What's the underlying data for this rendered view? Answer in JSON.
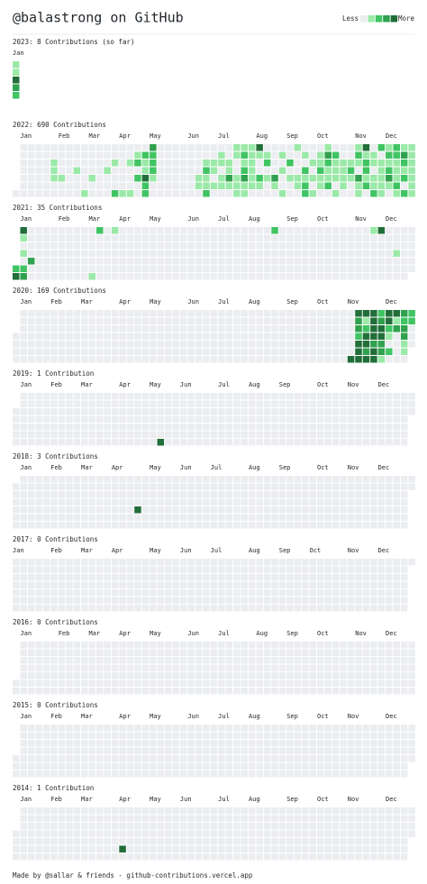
{
  "header": {
    "title": "@balastrong on GitHub",
    "legend_less": "Less",
    "legend_more": "More",
    "legend_levels": [
      0,
      1,
      2,
      3,
      4
    ],
    "colors": [
      "#ebedf0",
      "#9be9a8",
      "#40c463",
      "#30a14e",
      "#216e39"
    ]
  },
  "years": [
    {
      "title": "2023: 8 Contributions (so far)",
      "partial": true,
      "months": [
        "Jan"
      ],
      "active": [
        [
          0,
          0,
          1
        ],
        [
          0,
          1,
          1
        ],
        [
          0,
          2,
          4
        ],
        [
          0,
          3,
          3
        ],
        [
          0,
          4,
          2
        ]
      ]
    },
    {
      "title": "2022: 690 Contributions",
      "months": [
        "Jan",
        "Feb",
        "Mar",
        "Apr",
        "May",
        "Jun",
        "Jul",
        "Aug",
        "Sep",
        "Oct",
        "Nov",
        "Dec"
      ],
      "active": [
        [
          5,
          2,
          1
        ],
        [
          5,
          3,
          1
        ],
        [
          5,
          4,
          1
        ],
        [
          6,
          4,
          1
        ],
        [
          8,
          3,
          1
        ],
        [
          9,
          6,
          1
        ],
        [
          10,
          4,
          1
        ],
        [
          12,
          3,
          1
        ],
        [
          13,
          2,
          1
        ],
        [
          13,
          6,
          2
        ],
        [
          14,
          6,
          1
        ],
        [
          15,
          2,
          1
        ],
        [
          15,
          6,
          1
        ],
        [
          16,
          1,
          1
        ],
        [
          16,
          2,
          2
        ],
        [
          16,
          4,
          2
        ],
        [
          17,
          1,
          2
        ],
        [
          17,
          2,
          1
        ],
        [
          17,
          3,
          1
        ],
        [
          17,
          4,
          4
        ],
        [
          17,
          5,
          2
        ],
        [
          17,
          6,
          2
        ],
        [
          18,
          0,
          3
        ],
        [
          18,
          1,
          2
        ],
        [
          18,
          2,
          2
        ],
        [
          18,
          3,
          2
        ],
        [
          18,
          4,
          1
        ],
        [
          24,
          4,
          1
        ],
        [
          24,
          5,
          1
        ],
        [
          25,
          2,
          1
        ],
        [
          25,
          3,
          2
        ],
        [
          25,
          4,
          1
        ],
        [
          25,
          5,
          1
        ],
        [
          25,
          6,
          2
        ],
        [
          26,
          2,
          1
        ],
        [
          26,
          3,
          1
        ],
        [
          26,
          5,
          1
        ],
        [
          27,
          1,
          1
        ],
        [
          27,
          2,
          1
        ],
        [
          27,
          4,
          1
        ],
        [
          27,
          5,
          1
        ],
        [
          28,
          2,
          1
        ],
        [
          28,
          3,
          1
        ],
        [
          28,
          4,
          3
        ],
        [
          28,
          5,
          1
        ],
        [
          29,
          0,
          1
        ],
        [
          29,
          1,
          1
        ],
        [
          29,
          4,
          1
        ],
        [
          29,
          5,
          1
        ],
        [
          29,
          6,
          1
        ],
        [
          30,
          0,
          1
        ],
        [
          30,
          1,
          2
        ],
        [
          30,
          2,
          1
        ],
        [
          30,
          3,
          2
        ],
        [
          30,
          4,
          3
        ],
        [
          30,
          5,
          1
        ],
        [
          30,
          6,
          1
        ],
        [
          31,
          0,
          1
        ],
        [
          31,
          1,
          1
        ],
        [
          31,
          2,
          1
        ],
        [
          31,
          3,
          1
        ],
        [
          31,
          4,
          1
        ],
        [
          31,
          5,
          1
        ],
        [
          32,
          0,
          4
        ],
        [
          32,
          1,
          1
        ],
        [
          32,
          4,
          2
        ],
        [
          32,
          5,
          1
        ],
        [
          33,
          1,
          1
        ],
        [
          33,
          2,
          2
        ],
        [
          33,
          4,
          1
        ],
        [
          34,
          4,
          3
        ],
        [
          34,
          5,
          1
        ],
        [
          35,
          1,
          1
        ],
        [
          35,
          3,
          1
        ],
        [
          35,
          6,
          1
        ],
        [
          36,
          2,
          2
        ],
        [
          36,
          4,
          1
        ],
        [
          37,
          0,
          1
        ],
        [
          37,
          4,
          1
        ],
        [
          37,
          5,
          1
        ],
        [
          38,
          1,
          1
        ],
        [
          38,
          3,
          2
        ],
        [
          38,
          4,
          1
        ],
        [
          38,
          5,
          2
        ],
        [
          38,
          6,
          2
        ],
        [
          39,
          2,
          1
        ],
        [
          39,
          4,
          1
        ],
        [
          39,
          6,
          1
        ],
        [
          40,
          1,
          1
        ],
        [
          40,
          2,
          1
        ],
        [
          40,
          3,
          2
        ],
        [
          40,
          4,
          1
        ],
        [
          40,
          5,
          1
        ],
        [
          41,
          0,
          1
        ],
        [
          41,
          1,
          3
        ],
        [
          41,
          2,
          2
        ],
        [
          41,
          3,
          1
        ],
        [
          41,
          4,
          1
        ],
        [
          41,
          5,
          2
        ],
        [
          42,
          1,
          2
        ],
        [
          42,
          2,
          1
        ],
        [
          42,
          3,
          1
        ],
        [
          42,
          4,
          1
        ],
        [
          42,
          6,
          1
        ],
        [
          43,
          2,
          1
        ],
        [
          43,
          3,
          1
        ],
        [
          43,
          4,
          1
        ],
        [
          43,
          5,
          1
        ],
        [
          44,
          2,
          1
        ],
        [
          44,
          3,
          2
        ],
        [
          44,
          4,
          1
        ],
        [
          45,
          0,
          1
        ],
        [
          45,
          1,
          2
        ],
        [
          45,
          2,
          1
        ],
        [
          45,
          4,
          3
        ],
        [
          45,
          5,
          1
        ],
        [
          45,
          6,
          1
        ],
        [
          46,
          0,
          4
        ],
        [
          46,
          1,
          1
        ],
        [
          46,
          2,
          2
        ],
        [
          46,
          3,
          2
        ],
        [
          46,
          4,
          1
        ],
        [
          46,
          5,
          2
        ],
        [
          47,
          1,
          1
        ],
        [
          47,
          2,
          1
        ],
        [
          47,
          4,
          1
        ],
        [
          47,
          5,
          1
        ],
        [
          47,
          6,
          2
        ],
        [
          48,
          0,
          2
        ],
        [
          48,
          2,
          1
        ],
        [
          48,
          3,
          1
        ],
        [
          48,
          4,
          1
        ],
        [
          48,
          5,
          1
        ],
        [
          48,
          6,
          1
        ],
        [
          49,
          0,
          1
        ],
        [
          49,
          1,
          2
        ],
        [
          49,
          2,
          1
        ],
        [
          49,
          3,
          2
        ],
        [
          49,
          4,
          3
        ],
        [
          49,
          5,
          1
        ],
        [
          50,
          0,
          2
        ],
        [
          50,
          1,
          2
        ],
        [
          50,
          2,
          1
        ],
        [
          50,
          3,
          1
        ],
        [
          50,
          4,
          1
        ],
        [
          50,
          5,
          2
        ],
        [
          50,
          6,
          1
        ],
        [
          51,
          0,
          1
        ],
        [
          51,
          1,
          3
        ],
        [
          51,
          2,
          2
        ],
        [
          51,
          3,
          1
        ],
        [
          51,
          4,
          2
        ],
        [
          51,
          6,
          2
        ],
        [
          52,
          0,
          1
        ],
        [
          52,
          1,
          1
        ],
        [
          52,
          2,
          1
        ],
        [
          52,
          3,
          1
        ],
        [
          52,
          4,
          1
        ],
        [
          52,
          5,
          1
        ],
        [
          52,
          6,
          1
        ]
      ]
    },
    {
      "title": "2021: 35 Contributions",
      "months": [
        "Jan",
        "Feb",
        "Mar",
        "Apr",
        "May",
        "Jun",
        "Jul",
        "Aug",
        "Sep",
        "Oct",
        "Nov",
        "Dec"
      ],
      "active": [
        [
          0,
          5,
          2
        ],
        [
          0,
          6,
          4
        ],
        [
          1,
          0,
          4
        ],
        [
          1,
          1,
          1
        ],
        [
          1,
          3,
          1
        ],
        [
          1,
          5,
          2
        ],
        [
          1,
          6,
          3
        ],
        [
          2,
          4,
          3
        ],
        [
          10,
          6,
          1
        ],
        [
          11,
          0,
          2
        ],
        [
          13,
          0,
          1
        ],
        [
          34,
          0,
          2
        ],
        [
          47,
          0,
          1
        ],
        [
          48,
          0,
          4
        ],
        [
          50,
          3,
          1
        ]
      ]
    },
    {
      "title": "2020: 169 Contributions",
      "months": [
        "Jan",
        "Feb",
        "Mar",
        "Apr",
        "May",
        "Jun",
        "Jul",
        "Aug",
        "Sep",
        "Oct",
        "Nov",
        "Dec"
      ],
      "active": [
        [
          44,
          6,
          4
        ],
        [
          45,
          0,
          4
        ],
        [
          45,
          1,
          3
        ],
        [
          45,
          2,
          3
        ],
        [
          45,
          3,
          2
        ],
        [
          45,
          4,
          4
        ],
        [
          45,
          5,
          4
        ],
        [
          45,
          6,
          4
        ],
        [
          46,
          0,
          4
        ],
        [
          46,
          1,
          1
        ],
        [
          46,
          2,
          2
        ],
        [
          46,
          3,
          4
        ],
        [
          46,
          4,
          4
        ],
        [
          46,
          5,
          3
        ],
        [
          46,
          6,
          4
        ],
        [
          47,
          0,
          4
        ],
        [
          47,
          1,
          4
        ],
        [
          47,
          2,
          4
        ],
        [
          47,
          3,
          4
        ],
        [
          47,
          4,
          3
        ],
        [
          47,
          5,
          4
        ],
        [
          47,
          6,
          4
        ],
        [
          48,
          0,
          2
        ],
        [
          48,
          1,
          3
        ],
        [
          48,
          2,
          4
        ],
        [
          48,
          3,
          4
        ],
        [
          48,
          4,
          3
        ],
        [
          48,
          5,
          3
        ],
        [
          48,
          6,
          1
        ],
        [
          49,
          0,
          4
        ],
        [
          49,
          1,
          4
        ],
        [
          49,
          2,
          2
        ],
        [
          49,
          3,
          1
        ],
        [
          49,
          5,
          2
        ],
        [
          50,
          0,
          4
        ],
        [
          50,
          1,
          1
        ],
        [
          50,
          2,
          3
        ],
        [
          51,
          0,
          3
        ],
        [
          51,
          1,
          2
        ],
        [
          51,
          2,
          3
        ],
        [
          51,
          3,
          3
        ],
        [
          51,
          4,
          1
        ],
        [
          51,
          5,
          1
        ],
        [
          52,
          0,
          2
        ],
        [
          52,
          1,
          2
        ]
      ]
    },
    {
      "title": "2019: 1 Contribution",
      "months": [
        "Jan",
        "Feb",
        "Mar",
        "Apr",
        "May",
        "Jun",
        "Jul",
        "Aug",
        "Sep",
        "Oct",
        "Nov",
        "Dec"
      ],
      "active": [
        [
          19,
          6,
          4
        ]
      ]
    },
    {
      "title": "2018: 3 Contributions",
      "months": [
        "Jan",
        "Feb",
        "Mar",
        "Apr",
        "May",
        "Jun",
        "Jul",
        "Aug",
        "Sep",
        "Oct",
        "Nov",
        "Dec"
      ],
      "active": [
        [
          16,
          4,
          4
        ]
      ]
    },
    {
      "title": "2017: 0 Contributions",
      "months": [
        "Jan",
        "Feb",
        "Mar",
        "Apr",
        "May",
        "Jun",
        "Jul",
        "Aug",
        "Sep",
        "Oct",
        "Nov",
        "Dec"
      ],
      "active": []
    },
    {
      "title": "2016: 0 Contributions",
      "months": [
        "Jan",
        "Feb",
        "Mar",
        "Apr",
        "May",
        "Jun",
        "Jul",
        "Aug",
        "Sep",
        "Oct",
        "Nov",
        "Dec"
      ],
      "active": []
    },
    {
      "title": "2015: 0 Contributions",
      "months": [
        "Jan",
        "Feb",
        "Mar",
        "Apr",
        "May",
        "Jun",
        "Jul",
        "Aug",
        "Sep",
        "Oct",
        "Nov",
        "Dec"
      ],
      "active": []
    },
    {
      "title": "2014: 1 Contribution",
      "months": [
        "Jan",
        "Feb",
        "Mar",
        "Apr",
        "May",
        "Jun",
        "Jul",
        "Aug",
        "Sep",
        "Oct",
        "Nov",
        "Dec"
      ],
      "active": [
        [
          14,
          5,
          4
        ]
      ]
    }
  ],
  "footer": "Made by @sallar & friends - github-contributions.vercel.app"
}
